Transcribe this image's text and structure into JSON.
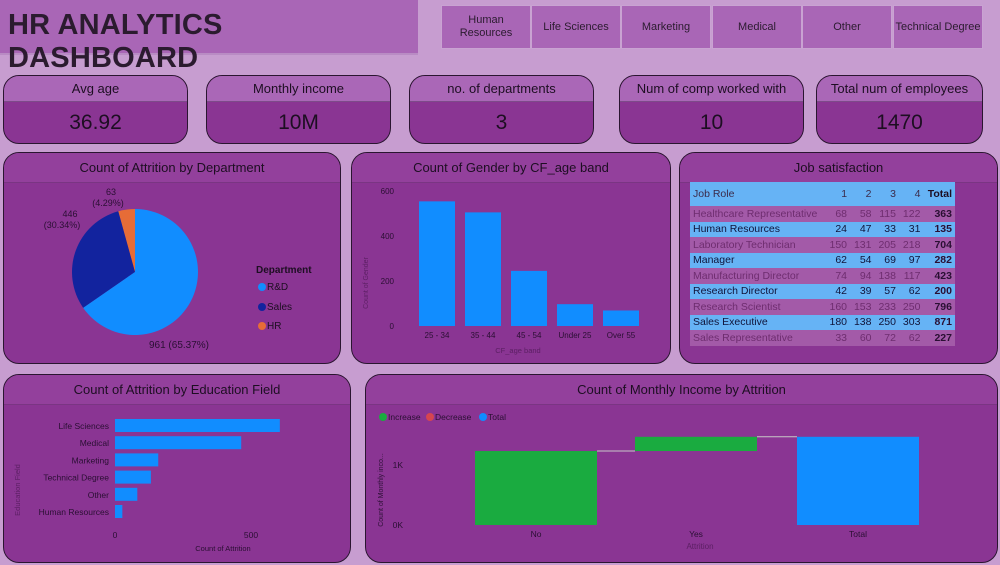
{
  "header": {
    "title": "HR ANALYTICS DASHBOARD"
  },
  "slicers": [
    "Human Resources",
    "Life Sciences",
    "Marketing",
    "Medical",
    "Other",
    "Technical Degree"
  ],
  "kpis": [
    {
      "label": "Avg age",
      "value": "36.92"
    },
    {
      "label": "Monthly income",
      "value": "10M"
    },
    {
      "label": "no. of departments",
      "value": "3"
    },
    {
      "label": "Num of comp worked with",
      "value": "10"
    },
    {
      "label": "Total num of employees",
      "value": "1470"
    }
  ],
  "colors": {
    "background": "#c79dd0",
    "panel": "#8a3593",
    "blue": "#118dff",
    "navy": "#12239e",
    "orange": "#e66c37",
    "green": "#1aab40",
    "red": "#d64550"
  },
  "chart_data": [
    {
      "type": "pie",
      "title": "Count of Attrition by Department",
      "legend_title": "Department",
      "legend": "right",
      "slices": [
        {
          "name": "R&D",
          "value": 961,
          "label": "961 (65.37%)",
          "color": "#118dff"
        },
        {
          "name": "Sales",
          "value": 446,
          "label": "446",
          "pct": "(30.34%)",
          "color": "#12239e"
        },
        {
          "name": "HR",
          "value": 63,
          "label": "63",
          "pct": "(4.29%)",
          "color": "#e66c37"
        }
      ]
    },
    {
      "type": "bar",
      "title": "Count of Gender by CF_age band",
      "xlabel": "CF_age band",
      "ylabel": "Count of Gender",
      "ylim": [
        0,
        600
      ],
      "yticks": [
        "0",
        "200",
        "400",
        "600"
      ],
      "categories": [
        "25 - 34",
        "35 - 44",
        "45 - 54",
        "Under 25",
        "Over 55"
      ],
      "values": [
        554,
        505,
        245,
        97,
        69
      ]
    },
    {
      "type": "table",
      "title": "Job satisfaction",
      "columns": [
        "Job Role",
        "1",
        "2",
        "3",
        "4",
        "Total"
      ],
      "rows": [
        [
          "Healthcare Representative",
          "68",
          "58",
          "115",
          "122",
          "363"
        ],
        [
          "Human Resources",
          "24",
          "47",
          "33",
          "31",
          "135"
        ],
        [
          "Laboratory Technician",
          "150",
          "131",
          "205",
          "218",
          "704"
        ],
        [
          "Manager",
          "62",
          "54",
          "69",
          "97",
          "282"
        ],
        [
          "Manufacturing Director",
          "74",
          "94",
          "138",
          "117",
          "423"
        ],
        [
          "Research Director",
          "42",
          "39",
          "57",
          "62",
          "200"
        ],
        [
          "Research Scientist",
          "160",
          "153",
          "233",
          "250",
          "796"
        ],
        [
          "Sales Executive",
          "180",
          "138",
          "250",
          "303",
          "871"
        ],
        [
          "Sales Representative",
          "33",
          "60",
          "72",
          "62",
          "227"
        ]
      ]
    },
    {
      "type": "bar",
      "orientation": "horizontal",
      "title": "Count of Attrition by Education Field",
      "xlabel": "Count of Attrition",
      "ylabel": "Education Field",
      "xlim": [
        0,
        700
      ],
      "xticks": [
        "0",
        "500"
      ],
      "categories": [
        "Life Sciences",
        "Medical",
        "Marketing",
        "Technical Degree",
        "Other",
        "Human Resources"
      ],
      "values": [
        606,
        464,
        159,
        132,
        82,
        27
      ]
    },
    {
      "type": "waterfall",
      "title": "Count of Monthly Income by Attrition",
      "xlabel": "Attrition",
      "ylabel": "Count of Monthly inco...",
      "yticks": [
        "0K",
        "1K"
      ],
      "ylim": [
        0,
        1500
      ],
      "legend": [
        "Increase",
        "Decrease",
        "Total"
      ],
      "categories": [
        "No",
        "Yes",
        "Total"
      ],
      "values": [
        1233,
        237,
        1470
      ]
    }
  ]
}
